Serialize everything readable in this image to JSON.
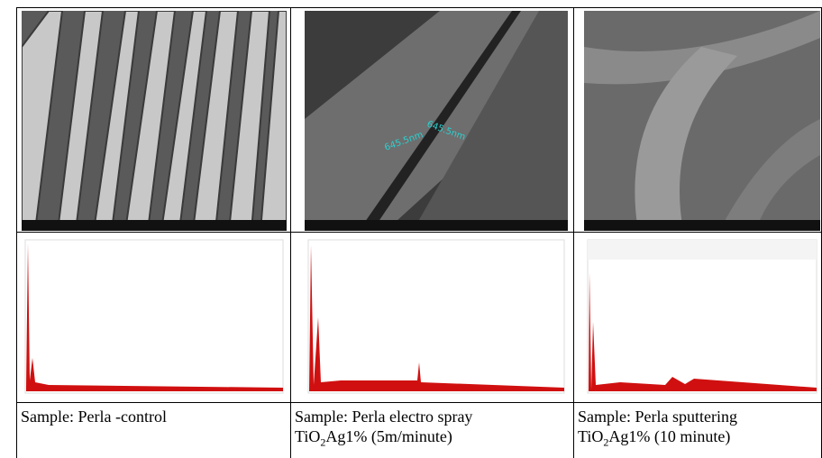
{
  "panels": [
    {
      "annotations": [],
      "caption": [
        [
          {
            "text": "Sample: Perla -control"
          }
        ]
      ]
    },
    {
      "annotations": [
        "645.5nm",
        "645.5nm"
      ],
      "caption": [
        [
          {
            "text": "Sample: Perla electro spray"
          }
        ],
        [
          {
            "text": "TiO"
          },
          {
            "sub": "2"
          },
          {
            "text": "Ag1% (5m/minute)"
          }
        ]
      ]
    },
    {
      "annotations": [],
      "caption": [
        [
          {
            "text": "Sample: Perla sputtering"
          }
        ],
        [
          {
            "text": "TiO"
          },
          {
            "sub": "2"
          },
          {
            "text": "Ag1% (10 minute)"
          }
        ]
      ]
    }
  ]
}
